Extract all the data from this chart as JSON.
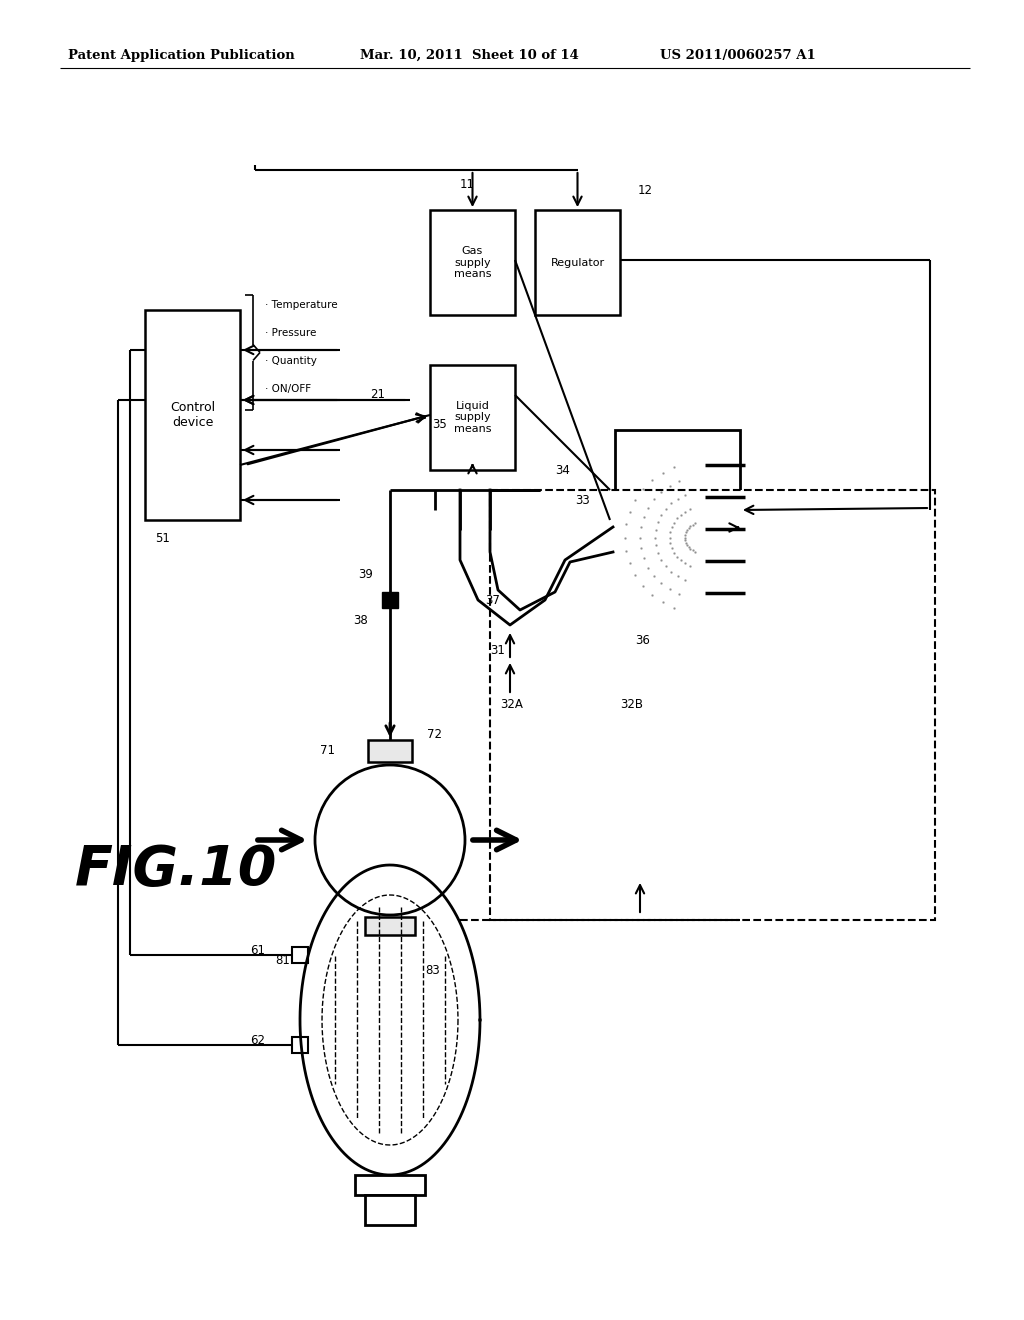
{
  "header_left": "Patent Application Publication",
  "header_mid": "Mar. 10, 2011  Sheet 10 of 14",
  "header_right": "US 2011/0060257 A1",
  "fig_label": "FIG.10",
  "bg_color": "#ffffff",
  "line_color": "#000000",
  "text_color": "#000000",
  "notes": [
    "· Temperature",
    "· Pressure",
    "· Quantity",
    "· ON/OFF"
  ]
}
